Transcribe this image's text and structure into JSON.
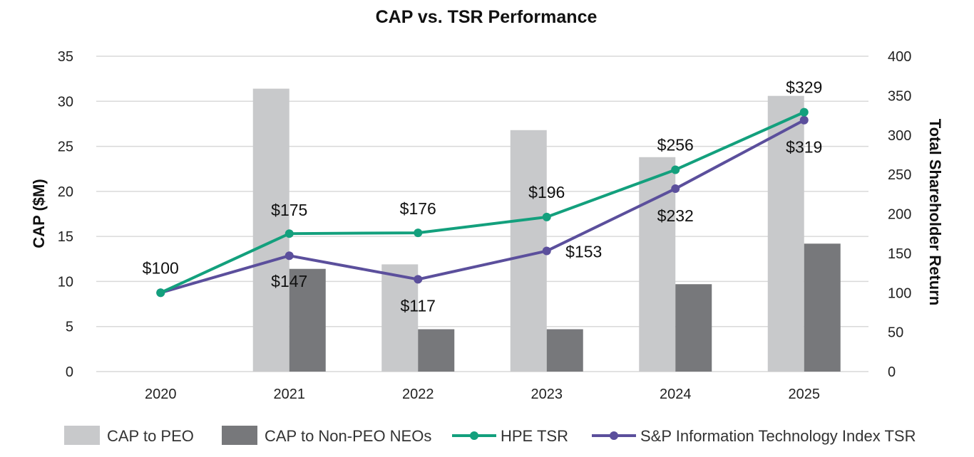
{
  "chart_data": {
    "type": "bar+line",
    "title": "CAP vs. TSR Performance",
    "categories": [
      "2020",
      "2021",
      "2022",
      "2023",
      "2024",
      "2025"
    ],
    "y_left": {
      "label": "CAP ($M)",
      "ylim": [
        0,
        35
      ],
      "ticks": [
        "0",
        "5",
        "10",
        "15",
        "20",
        "25",
        "30",
        "35"
      ],
      "tick_values": [
        0,
        5,
        10,
        15,
        20,
        25,
        30,
        35
      ]
    },
    "y_right": {
      "label": "Total Shareholder Return",
      "ylim": [
        0,
        400
      ],
      "ticks": [
        "0",
        "50",
        "100",
        "150",
        "200",
        "250",
        "300",
        "350",
        "400"
      ],
      "tick_values": [
        0,
        50,
        100,
        150,
        200,
        250,
        300,
        350,
        400
      ]
    },
    "bar_series": [
      {
        "name": "CAP to PEO",
        "color": "#c8c9cb",
        "values": [
          0,
          31.4,
          11.9,
          26.8,
          23.8,
          30.6
        ]
      },
      {
        "name": "CAP to Non-PEO NEOs",
        "color": "#77787b",
        "values": [
          0,
          11.4,
          4.7,
          4.7,
          9.7,
          14.2
        ]
      }
    ],
    "line_series": [
      {
        "name": "HPE TSR",
        "color": "#13a07d",
        "values": [
          100,
          175,
          176,
          196,
          256,
          329
        ],
        "labels": [
          "$100",
          "$175",
          "$176",
          "$196",
          "$256",
          "$329"
        ]
      },
      {
        "name": "S&P Information Technology Index TSR",
        "color": "#5b4f9c",
        "values": [
          100,
          147,
          117,
          153,
          232,
          319
        ],
        "labels": [
          "",
          "$147",
          "$117",
          "$153",
          "$232",
          "$319"
        ]
      }
    ],
    "grid": true,
    "legend_position": "bottom"
  }
}
